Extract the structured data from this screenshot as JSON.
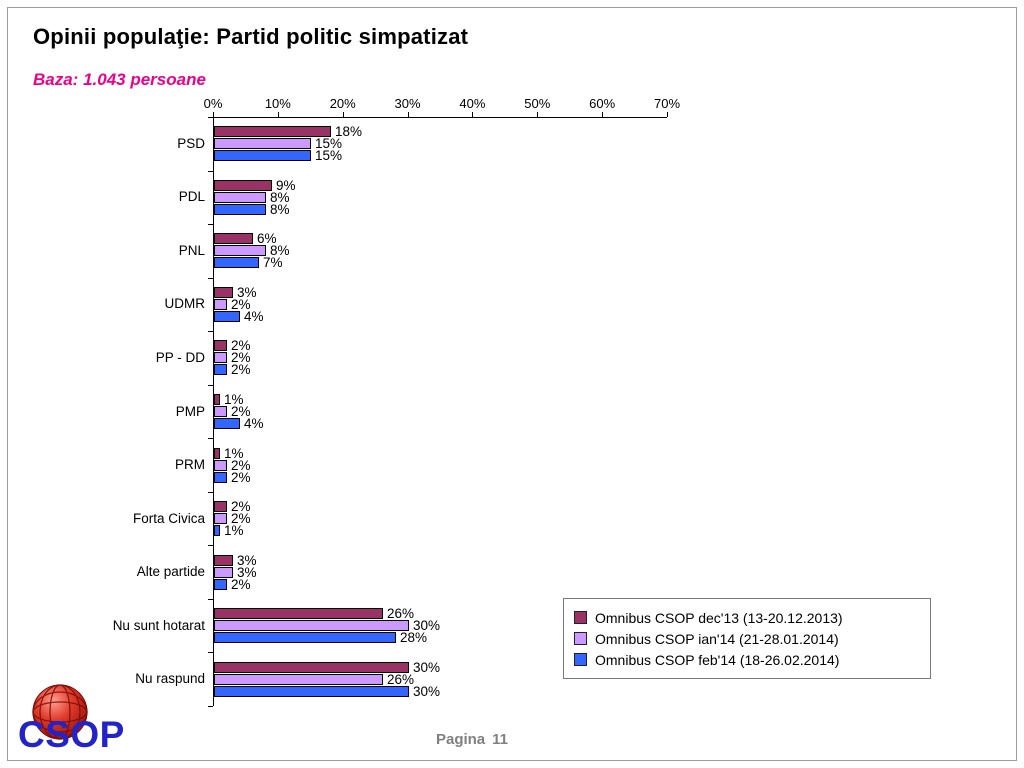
{
  "page": {
    "title": "Opinii populaţie: Partid politic simpatizat",
    "subtitle": "Baza: 1.043 persoane",
    "footer_label": "Pagina",
    "footer_number": "11",
    "logo_text": "CSOP"
  },
  "colors": {
    "subtitle_magenta": "#ec008c",
    "series_dec13": "#993366",
    "series_ian14": "#cc99ff",
    "series_feb14": "#3366ff",
    "logo_blue": "#2323c8",
    "logo_red": "#d42020",
    "footer_gray": "#808080"
  },
  "chart_data": {
    "type": "bar",
    "orientation": "horizontal",
    "title": "",
    "xlabel": "",
    "ylabel": "",
    "xlim": [
      0,
      70
    ],
    "x_ticks": [
      "0%",
      "10%",
      "20%",
      "30%",
      "40%",
      "50%",
      "60%",
      "70%"
    ],
    "grid": false,
    "legend_position": "bottom-right",
    "value_suffix": "%",
    "categories": [
      "PSD",
      "PDL",
      "PNL",
      "UDMR",
      "PP - DD",
      "PMP",
      "PRM",
      "Forta Civica",
      "Alte partide",
      "Nu sunt hotarat",
      "Nu raspund"
    ],
    "series": [
      {
        "name": "Omnibus CSOP dec'13 (13-20.12.2013)",
        "color": "#993366",
        "values": [
          18,
          9,
          6,
          3,
          2,
          1,
          1,
          2,
          3,
          26,
          30
        ]
      },
      {
        "name": "Omnibus CSOP ian'14 (21-28.01.2014)",
        "color": "#cc99ff",
        "values": [
          15,
          8,
          8,
          2,
          2,
          2,
          2,
          2,
          3,
          30,
          26
        ]
      },
      {
        "name": "Omnibus CSOP feb'14 (18-26.02.2014)",
        "color": "#3366ff",
        "values": [
          15,
          8,
          7,
          4,
          2,
          4,
          2,
          1,
          2,
          28,
          30
        ]
      }
    ]
  }
}
